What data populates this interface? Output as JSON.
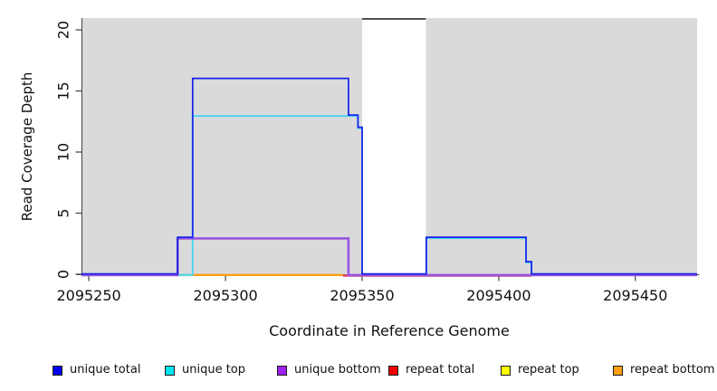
{
  "y_axis": {
    "title": "Read Coverage Depth",
    "tick_labels": [
      "0",
      "5",
      "10",
      "15",
      "20"
    ]
  },
  "x_axis": {
    "title": "Coordinate in Reference Genome",
    "tick_labels": [
      "2095250",
      "2095300",
      "2095350",
      "2095400",
      "2095450"
    ]
  },
  "legend": {
    "items": [
      {
        "label": "unique total",
        "color": "#0000EE"
      },
      {
        "label": "unique top",
        "color": "#00E5EE"
      },
      {
        "label": "unique bottom",
        "color": "#A020F0"
      },
      {
        "label": "repeat total",
        "color": "#EE0000"
      },
      {
        "label": "repeat top",
        "color": "#FFFF00"
      },
      {
        "label": "repeat bottom",
        "color": "#FFA010"
      }
    ]
  },
  "chart_data": {
    "type": "line",
    "subtype": "step-coverage",
    "title": "",
    "xlabel": "Coordinate in Reference Genome",
    "ylabel": "Read Coverage Depth",
    "xlim": [
      2095247.3,
      2095472.6
    ],
    "ylim": [
      0,
      20.96
    ],
    "x_ticks": [
      2095250,
      2095300,
      2095350,
      2095400,
      2095450
    ],
    "y_ticks": [
      0,
      5,
      10,
      15,
      20
    ],
    "grid": false,
    "legend_position": "bottom",
    "panel_bg": "#DADADA",
    "page_bg": "#FFFFFF",
    "axis_color": "#404040",
    "repeat_region_band": {
      "x0": 2095350,
      "x1": 2095373.3,
      "fill": "#FFFFFF",
      "top_edge_color": "#3A3A3A"
    },
    "series": [
      {
        "name": "repeat total",
        "legend_color": "#EE0000",
        "line_color": "#E04868",
        "width": 2.6,
        "dy": 1.4,
        "points": [
          [
            2095343,
            0
          ]
        ],
        "end_x": 2095412
      },
      {
        "name": "repeat top",
        "legend_color": "#FFFF00",
        "line_color": "#8FE6A0",
        "width": 2.2,
        "dy": 1.0,
        "points": [
          [
            2095282.5,
            0
          ]
        ],
        "end_x": 2095288,
        "note": "appears pale green where yellow overlaps cyan at depth 0"
      },
      {
        "name": "repeat bottom",
        "legend_color": "#FFA010",
        "line_color": "#FF9E1B",
        "width": 2.4,
        "dy": 0.8,
        "points": [
          [
            2095288,
            0
          ]
        ],
        "end_x": 2095343
      },
      {
        "name": "unique top",
        "legend_color": "#00E5EE",
        "line_color": "#4FD4F0",
        "width": 2.0,
        "dy": 0.6,
        "points": [
          [
            2095247.3,
            0
          ],
          [
            2095288,
            13
          ],
          [
            2095348.5,
            12
          ],
          [
            2095350,
            0
          ],
          [
            2095373.5,
            3
          ],
          [
            2095410,
            1
          ],
          [
            2095412,
            0
          ]
        ],
        "end_x": 2095472.6
      },
      {
        "name": "unique bottom",
        "legend_color": "#A020F0",
        "line_color": "#9955E0",
        "width": 2.6,
        "dy": 0.9,
        "points": [
          [
            2095247.3,
            0
          ],
          [
            2095282.5,
            3
          ],
          [
            2095345,
            0
          ]
        ],
        "end_x": 2095472.6
      },
      {
        "name": "unique total",
        "legend_color": "#0000EE",
        "line_color": "#1822E8",
        "width": 1.7,
        "dy": -0.4,
        "points": [
          [
            2095247.3,
            0
          ],
          [
            2095282.5,
            3
          ],
          [
            2095288,
            16
          ],
          [
            2095345,
            13
          ],
          [
            2095348.5,
            12
          ],
          [
            2095350,
            0
          ],
          [
            2095373.5,
            3
          ],
          [
            2095410,
            1
          ],
          [
            2095412,
            0
          ]
        ],
        "end_x": 2095472.6
      }
    ]
  }
}
